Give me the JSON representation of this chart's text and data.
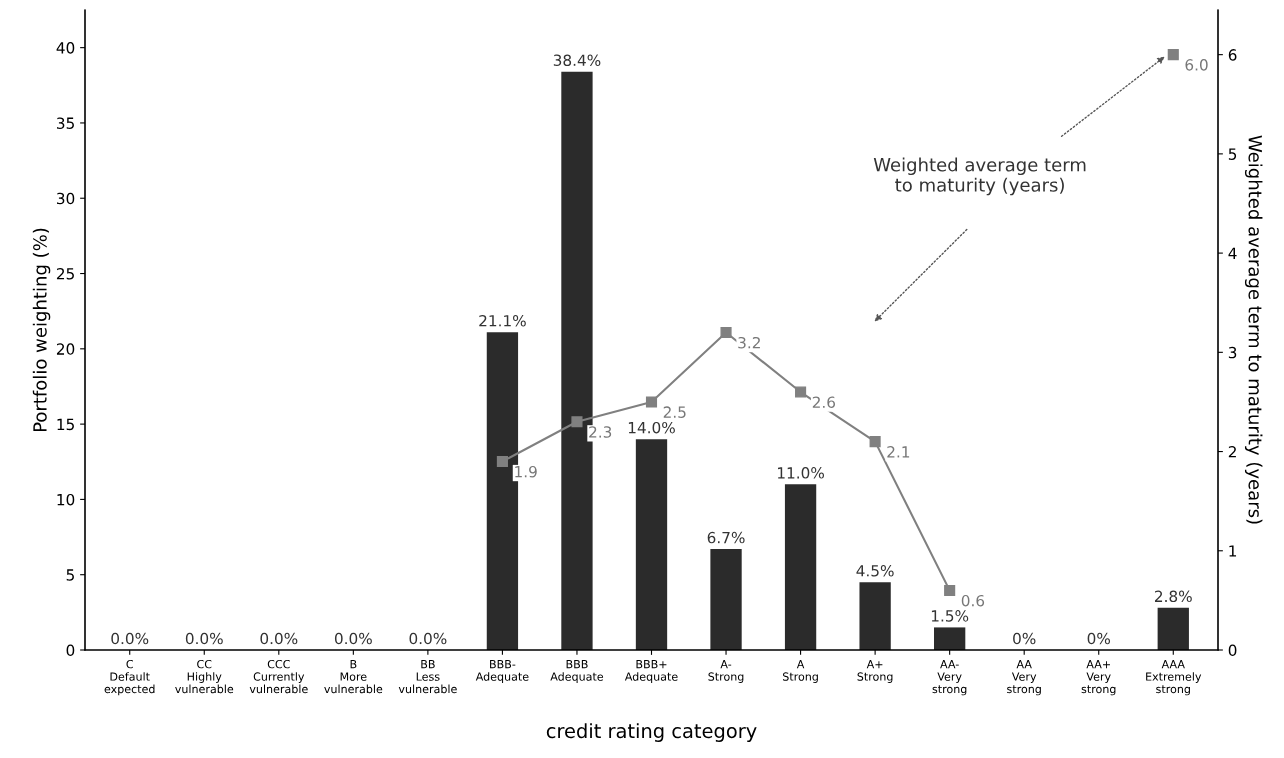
{
  "chart_data": {
    "type": "bar",
    "xlabel": "credit rating category",
    "ylabel": "Portfolio weighting (%)",
    "y2label": "Weighted average term to maturity (years)",
    "categories": [
      "C\nDefault\nexpected",
      "CC\nHighly\nvulnerable",
      "CCC\nCurrently\nvulnerable",
      "B\nMore\nvulnerable",
      "BB\nLess\nvulnerable",
      "BBB-\nAdequate",
      "BBB\nAdequate",
      "BBB+\nAdequate",
      "A-\nStrong",
      "A\nStrong",
      "A+\nStrong",
      "AA-\nVery\nstrong",
      "AA\nVery\nstrong",
      "AA+\nVery\nstrong",
      "AAA\nExtremely\nstrong"
    ],
    "series": [
      {
        "color": "#2b2b2b",
        "values": [
          0,
          0,
          0,
          0,
          0,
          21.1,
          38.4,
          14.0,
          6.7,
          11.0,
          4.5,
          1.5,
          0,
          0,
          2.8
        ],
        "value_labels": [
          "0.0%",
          "0.0%",
          "0.0%",
          "0.0%",
          "0.0%",
          "21.1%",
          "38.4%",
          "14.0%",
          "6.7%",
          "11.0%",
          "4.5%",
          "1.5%",
          "0%",
          "0%",
          "2.8%"
        ]
      },
      {
        "type": "line",
        "axis": "y2",
        "color": "#808080",
        "marker": "square",
        "line_style": "solid",
        "values": [
          null,
          null,
          null,
          null,
          null,
          1.9,
          2.3,
          2.5,
          3.2,
          2.6,
          2.1,
          0.6,
          null,
          null,
          6.0
        ],
        "value_labels": [
          null,
          null,
          null,
          null,
          null,
          "1.9",
          "2.3",
          "2.5",
          "3.2",
          "2.6",
          "2.1",
          "0.6",
          null,
          null,
          "6.0"
        ]
      }
    ],
    "ylim": [
      0,
      42.5
    ],
    "yticks": [
      0,
      5,
      10,
      15,
      20,
      25,
      30,
      35,
      40
    ],
    "y2lim": [
      0,
      6.45
    ],
    "y2ticks": [
      0,
      1,
      2,
      3,
      4,
      5,
      6
    ],
    "annotations": [
      "Weighted average term\nto maturity (years)"
    ],
    "grid": false,
    "legend": false
  }
}
